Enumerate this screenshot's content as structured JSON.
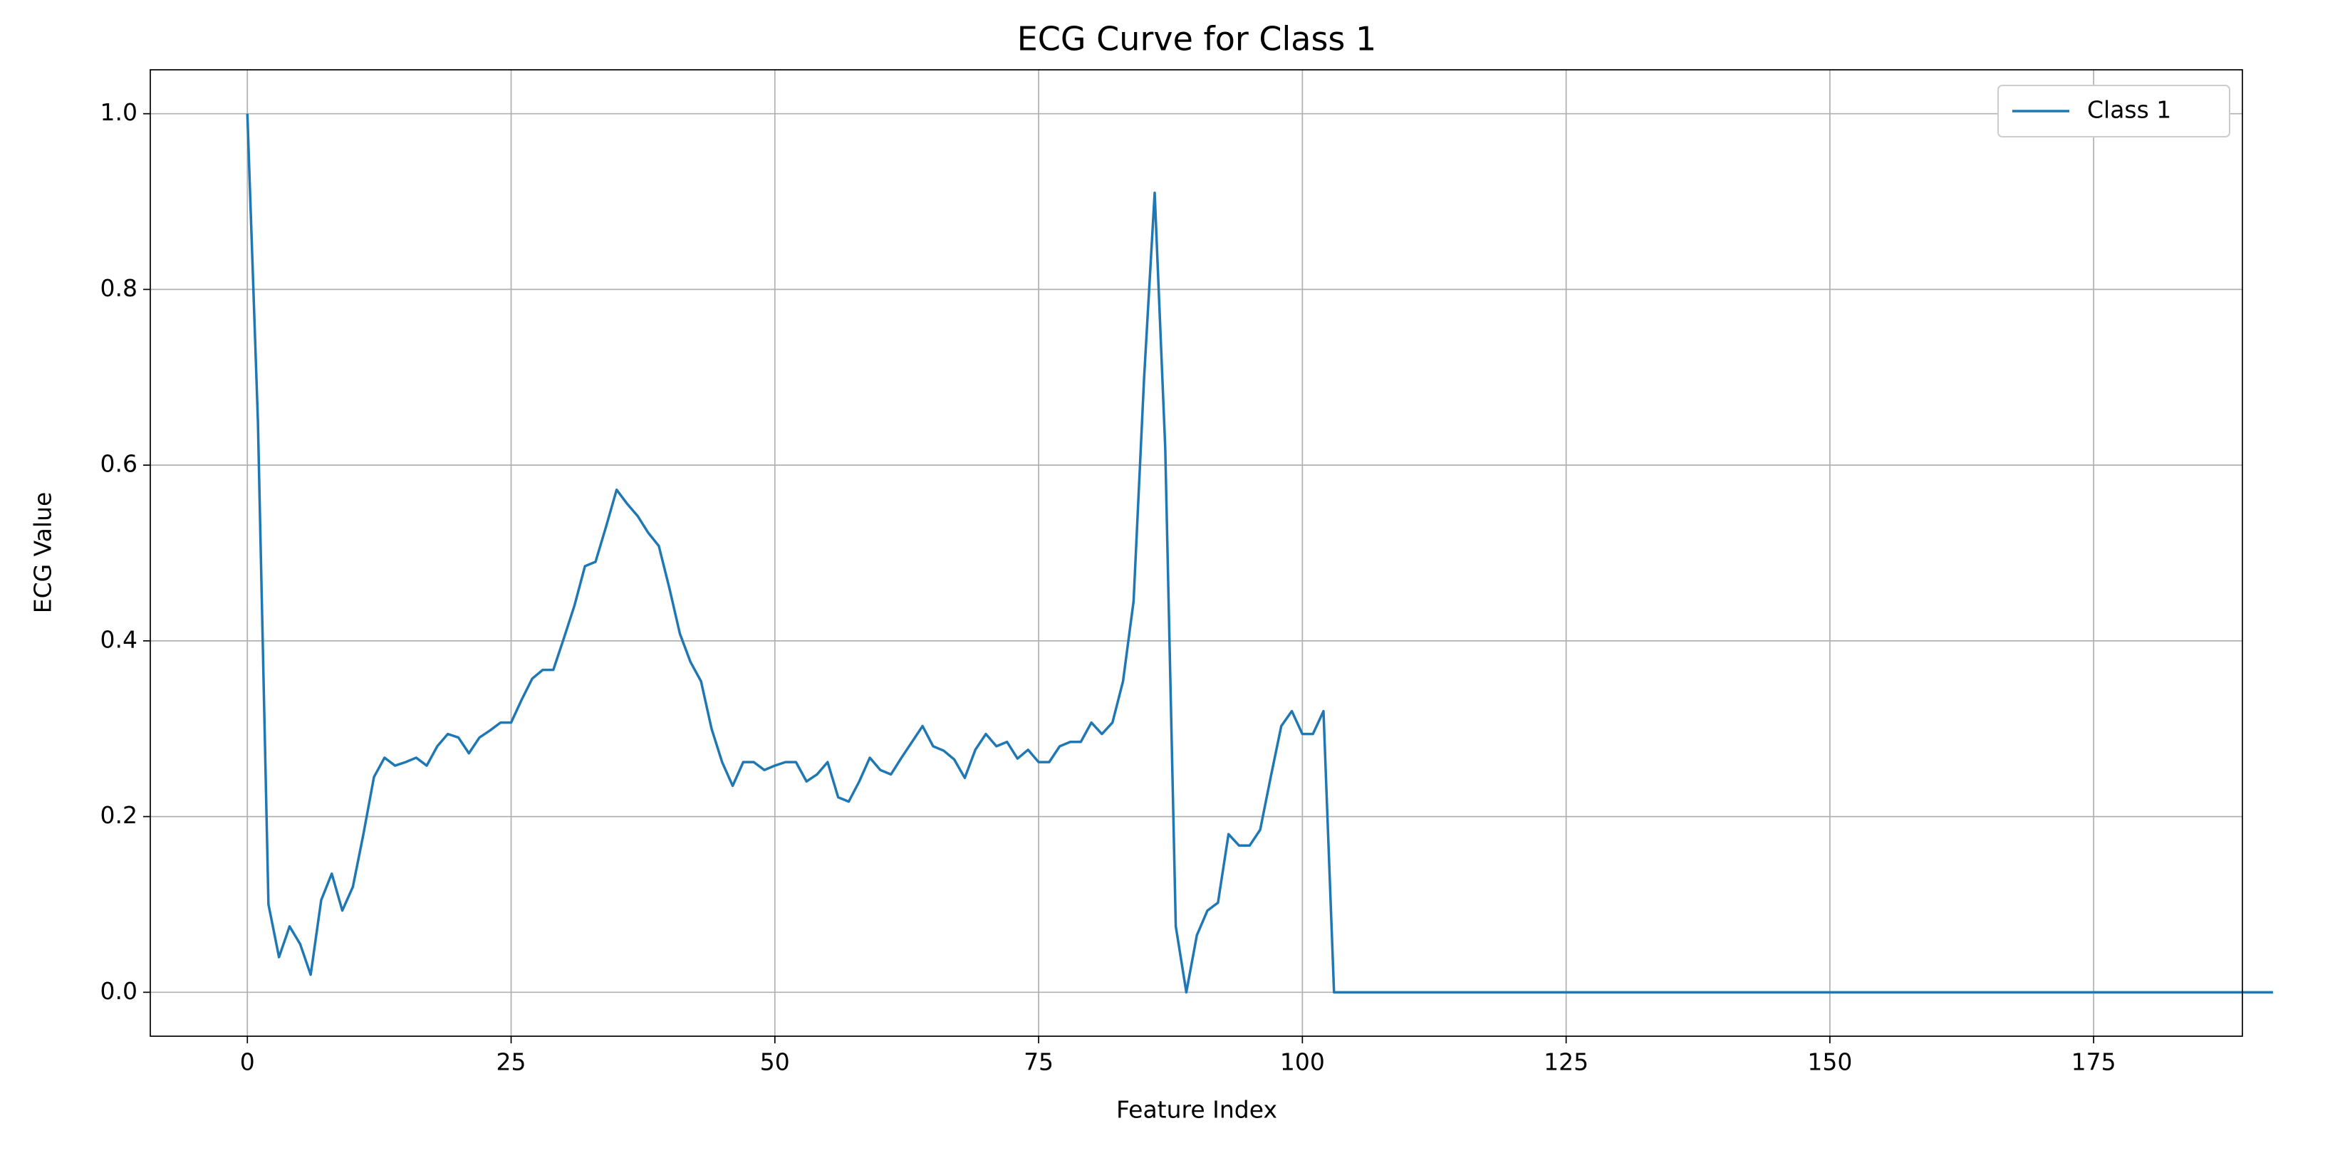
{
  "chart_data": {
    "type": "line",
    "title": "ECG Curve for Class 1",
    "xlabel": "Feature Index",
    "ylabel": "ECG Value",
    "series": [
      {
        "name": "Class 1",
        "color": "#1f77b4",
        "values": [
          1.0,
          0.65,
          0.1,
          0.04,
          0.075,
          0.055,
          0.02,
          0.105,
          0.135,
          0.093,
          0.12,
          0.18,
          0.245,
          0.267,
          0.258,
          0.262,
          0.267,
          0.258,
          0.28,
          0.294,
          0.29,
          0.272,
          0.29,
          0.298,
          0.307,
          0.307,
          0.333,
          0.357,
          0.367,
          0.367,
          0.403,
          0.44,
          0.485,
          0.49,
          0.53,
          0.572,
          0.556,
          0.542,
          0.523,
          0.508,
          0.46,
          0.408,
          0.376,
          0.354,
          0.3,
          0.262,
          0.235,
          0.262,
          0.262,
          0.253,
          0.258,
          0.262,
          0.262,
          0.24,
          0.248,
          0.262,
          0.222,
          0.217,
          0.24,
          0.267,
          0.253,
          0.248,
          0.267,
          0.285,
          0.303,
          0.28,
          0.275,
          0.265,
          0.244,
          0.276,
          0.294,
          0.28,
          0.285,
          0.266,
          0.276,
          0.262,
          0.262,
          0.28,
          0.285,
          0.285,
          0.307,
          0.294,
          0.307,
          0.354,
          0.445,
          0.7,
          0.91,
          0.62,
          0.075,
          0.0,
          0.065,
          0.093,
          0.102,
          0.18,
          0.167,
          0.167,
          0.185,
          0.245,
          0.303,
          0.32,
          0.294,
          0.294,
          0.32,
          0.0,
          0,
          0,
          0,
          0,
          0,
          0,
          0,
          0,
          0,
          0,
          0,
          0,
          0,
          0,
          0,
          0,
          0,
          0,
          0,
          0,
          0,
          0,
          0,
          0,
          0,
          0,
          0,
          0,
          0,
          0,
          0,
          0,
          0,
          0,
          0,
          0,
          0,
          0,
          0,
          0,
          0,
          0,
          0,
          0,
          0,
          0,
          0,
          0,
          0,
          0,
          0,
          0,
          0,
          0,
          0,
          0,
          0,
          0,
          0,
          0,
          0,
          0,
          0,
          0,
          0,
          0,
          0,
          0,
          0,
          0,
          0,
          0,
          0,
          0,
          0,
          0,
          0,
          0,
          0,
          0,
          0,
          0,
          0,
          0,
          0,
          0,
          0,
          0,
          0
        ]
      }
    ],
    "xlim": [
      -9.2,
      189.1
    ],
    "xticks": [
      0,
      25,
      50,
      75,
      100,
      125,
      150,
      175
    ],
    "ylim": [
      -0.05,
      1.05
    ],
    "yticks": [
      {
        "value": 0,
        "label": "0.0"
      },
      0.2,
      0.4,
      0.6,
      0.8,
      {
        "value": 1,
        "label": "1.0"
      }
    ],
    "grid": true,
    "legend": "upper right"
  }
}
